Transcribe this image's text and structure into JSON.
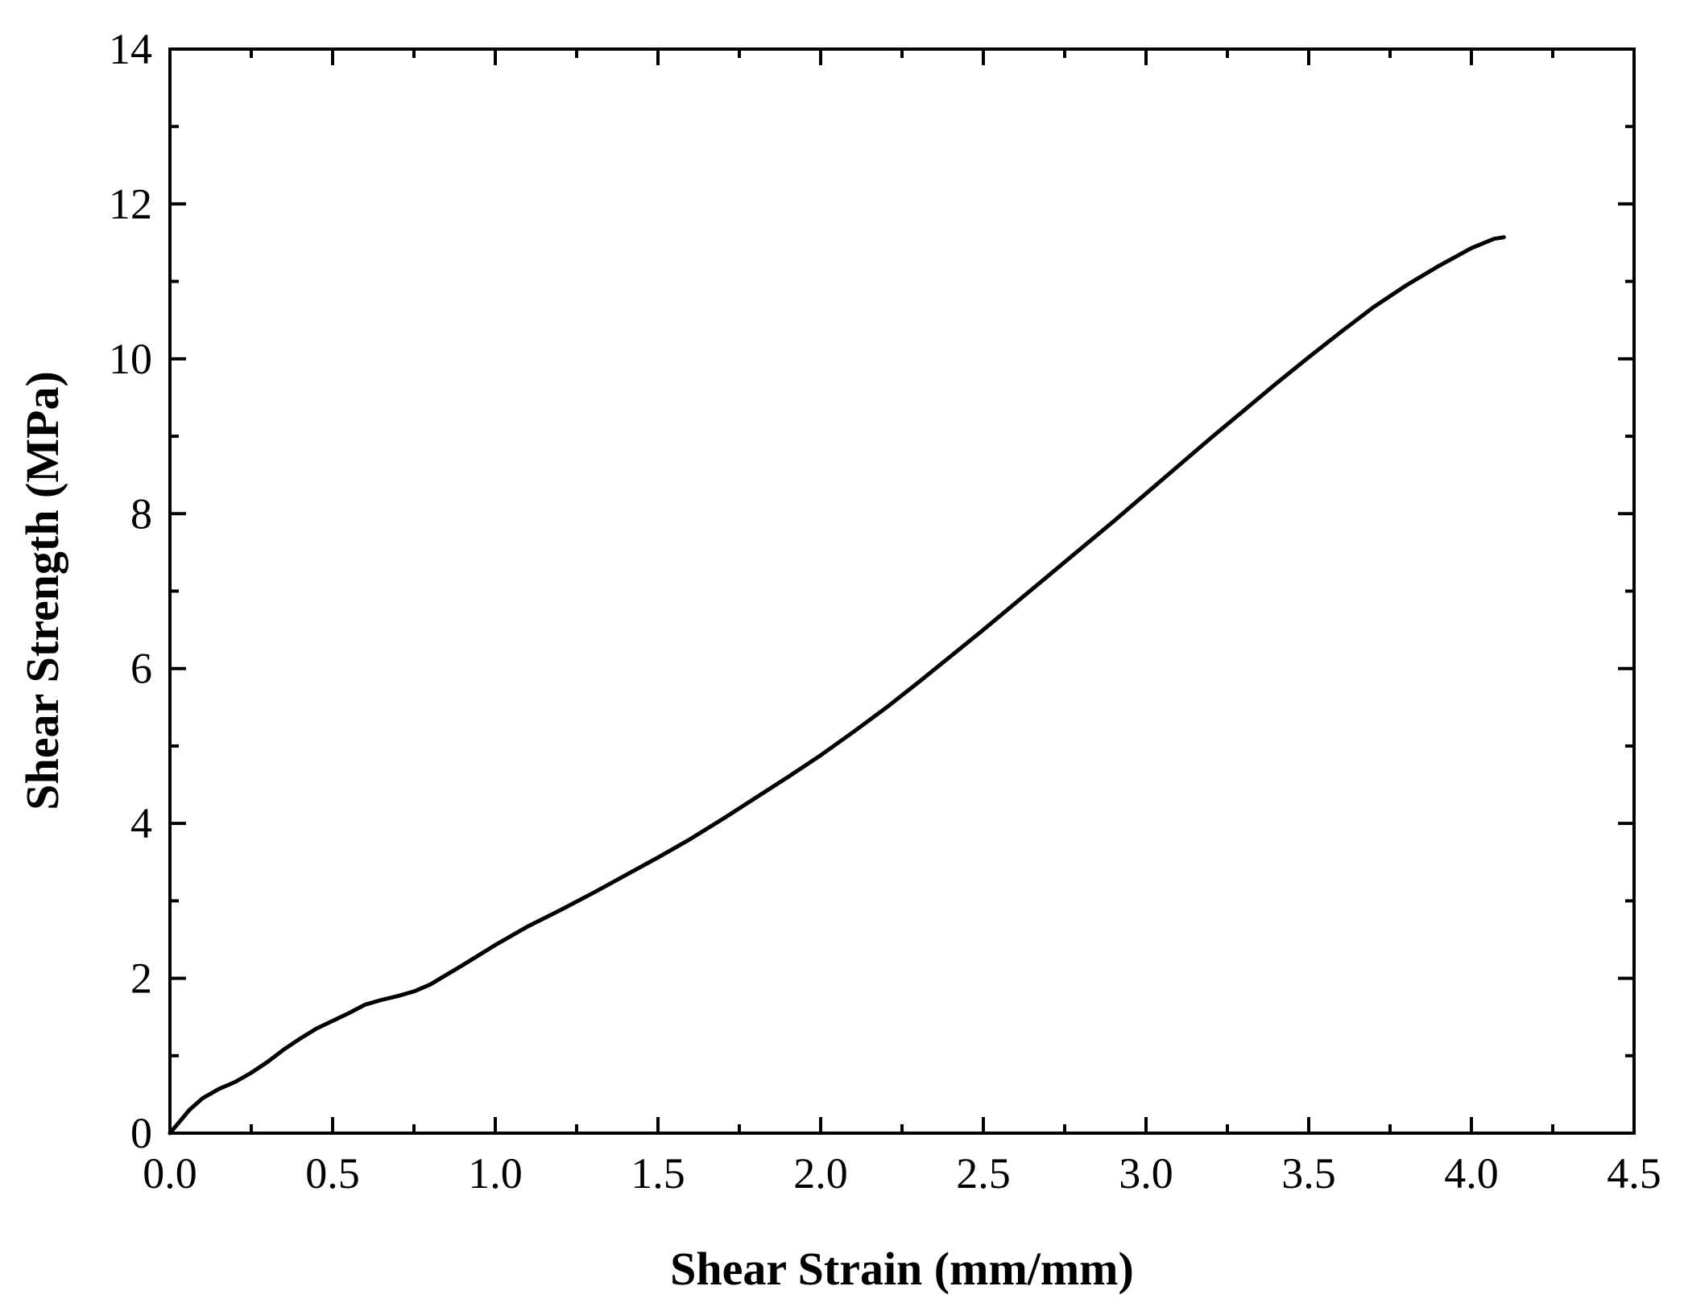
{
  "chart_data": {
    "type": "line",
    "title": "",
    "xlabel": "Shear Strain (mm/mm)",
    "ylabel": "Shear Strength (MPa)",
    "xlim": [
      0,
      4.5
    ],
    "ylim": [
      0,
      14
    ],
    "x_ticks": [
      "0.0",
      "0.5",
      "1.0",
      "1.5",
      "2.0",
      "2.5",
      "3.0",
      "3.5",
      "4.0",
      "4.5"
    ],
    "y_ticks": [
      "0",
      "2",
      "4",
      "6",
      "8",
      "10",
      "12",
      "14"
    ],
    "grid": false,
    "legend": "none",
    "line_color": "#000000",
    "series": [
      {
        "x": [
          0.0,
          0.03,
          0.06,
          0.1,
          0.15,
          0.2,
          0.25,
          0.3,
          0.35,
          0.4,
          0.45,
          0.5,
          0.55,
          0.6,
          0.65,
          0.7,
          0.75,
          0.8,
          0.9,
          1.0,
          1.1,
          1.2,
          1.3,
          1.4,
          1.5,
          1.6,
          1.7,
          1.8,
          1.9,
          2.0,
          2.1,
          2.2,
          2.3,
          2.4,
          2.5,
          2.6,
          2.7,
          2.8,
          2.9,
          3.0,
          3.1,
          3.2,
          3.3,
          3.4,
          3.5,
          3.6,
          3.7,
          3.8,
          3.9,
          4.0,
          4.07,
          4.1
        ],
        "y": [
          0.0,
          0.15,
          0.3,
          0.45,
          0.57,
          0.66,
          0.78,
          0.92,
          1.08,
          1.22,
          1.35,
          1.45,
          1.55,
          1.66,
          1.72,
          1.77,
          1.83,
          1.92,
          2.17,
          2.43,
          2.67,
          2.88,
          3.1,
          3.33,
          3.56,
          3.8,
          4.06,
          4.33,
          4.6,
          4.88,
          5.18,
          5.49,
          5.82,
          6.16,
          6.5,
          6.85,
          7.2,
          7.55,
          7.9,
          8.26,
          8.62,
          8.98,
          9.33,
          9.68,
          10.02,
          10.35,
          10.67,
          10.95,
          11.2,
          11.43,
          11.55,
          11.57
        ]
      }
    ]
  }
}
